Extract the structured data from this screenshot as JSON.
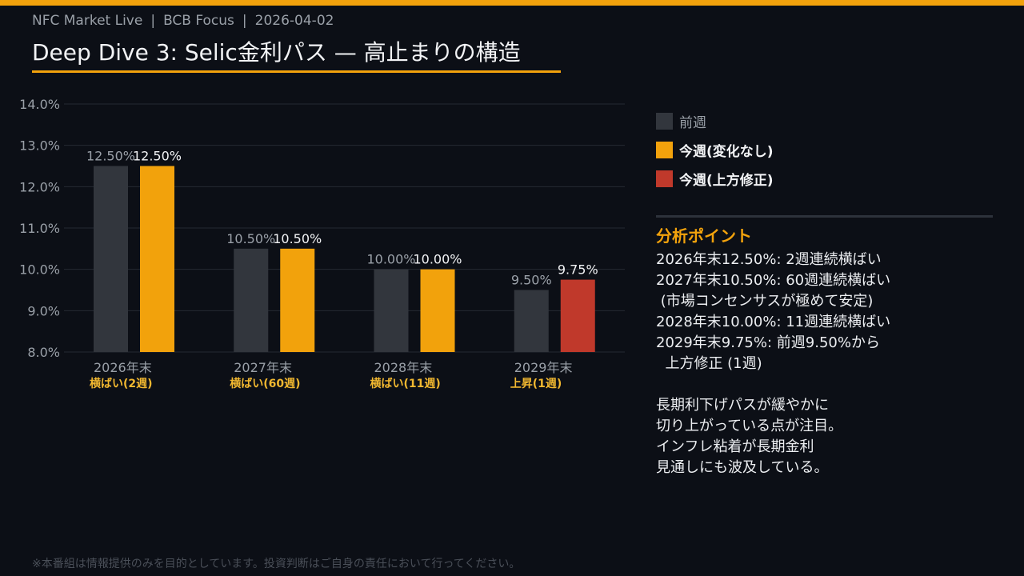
{
  "header": {
    "meta_items": [
      "NFC Market Live",
      "BCB Focus",
      "2026-04-02"
    ],
    "separator": "|",
    "title": "Deep Dive 3: Selic金利パス — 高止まりの構造"
  },
  "colors": {
    "accent": "#f2a20c",
    "previous": "#32363d",
    "unchanged": "#f2a20c",
    "revised_up": "#c0392b",
    "grid": "#252a33",
    "axis_text": "#9aa0a8",
    "sublabel": "#f2b830"
  },
  "legend": [
    {
      "label": "前週",
      "color": "#32363d",
      "style": "muted"
    },
    {
      "label": "今週(変化なし)",
      "color": "#f2a20c",
      "style": "bold"
    },
    {
      "label": "今週(上方修正)",
      "color": "#c0392b",
      "style": "bold"
    }
  ],
  "chart_data": {
    "type": "bar",
    "categories": [
      "2026年末",
      "2027年末",
      "2028年末",
      "2029年末"
    ],
    "category_sublabels": [
      "横ばい(2週)",
      "横ばい(60週)",
      "横ばい(11週)",
      "上昇(1週)"
    ],
    "series": [
      {
        "name": "前週",
        "values": [
          12.5,
          10.5,
          10.0,
          9.5
        ],
        "labels": [
          "12.50%",
          "10.50%",
          "10.00%",
          "9.50%"
        ]
      },
      {
        "name": "今週",
        "values": [
          12.5,
          10.5,
          10.0,
          9.75
        ],
        "labels": [
          "12.50%",
          "10.50%",
          "10.00%",
          "9.75%"
        ],
        "revised": [
          false,
          false,
          false,
          true
        ]
      }
    ],
    "ylim": [
      8.0,
      14.0
    ],
    "yticks": [
      "8.0%",
      "9.0%",
      "10.0%",
      "11.0%",
      "12.0%",
      "13.0%",
      "14.0%"
    ],
    "grid": true
  },
  "analysis": {
    "title": "分析ポイント",
    "lines": [
      "2026年末12.50%: 2週連続横ばい",
      "2027年末10.50%: 60週連続横ばい",
      " (市場コンセンサスが極めて安定)",
      "2028年末10.00%: 11週連続横ばい",
      "2029年末9.75%: 前週9.50%から",
      "  上方修正 (1週)",
      "",
      "長期利下げパスが緩やかに",
      "切り上がっている点が注目。",
      "インフレ粘着が長期金利",
      "見通しにも波及している。"
    ]
  },
  "disclaimer": "※本番組は情報提供のみを目的としています。投資判断はご自身の責任において行ってください。"
}
